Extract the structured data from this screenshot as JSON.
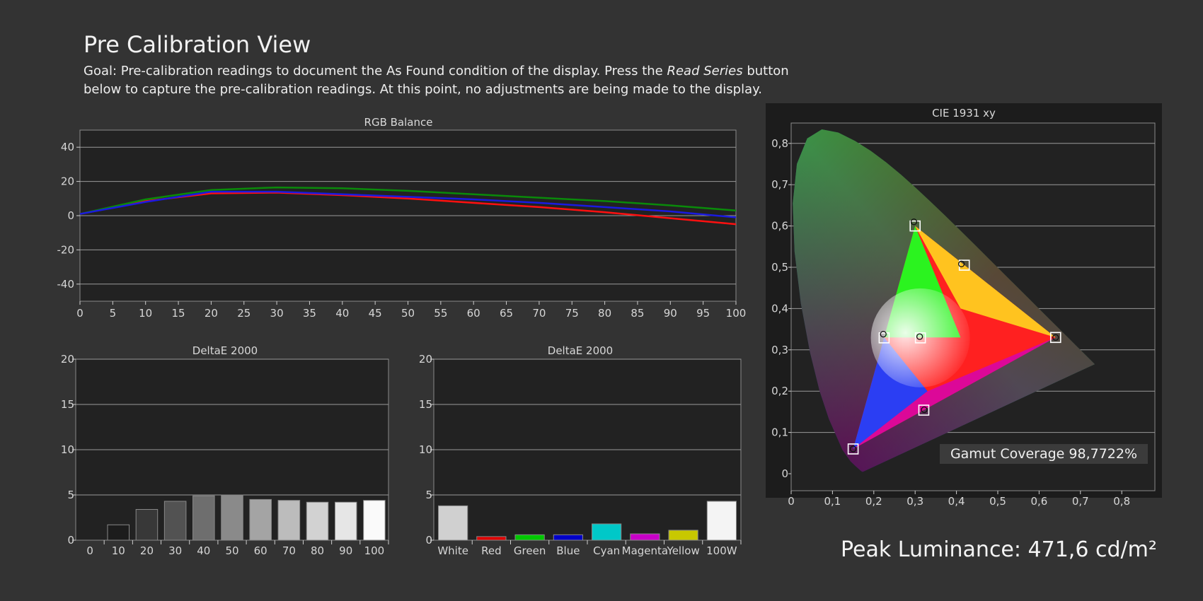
{
  "page": {
    "title": "Pre Calibration View",
    "desc_prefix": "Goal: Pre-calibration readings to document the As Found condition of the display. Press the ",
    "desc_emphasis": "Read Series",
    "desc_suffix": " button below to capture the pre-calibration readings. At this point, no adjustments are being made to the display."
  },
  "gamut_coverage": "Gamut Coverage 98,7722%",
  "peak_luminance": "Peak Luminance: 471,6 cd/m²",
  "colors": {
    "background": "#333333",
    "plot_bg": "#222222",
    "grid": "#9a9a9a",
    "red": "#ff1010",
    "green": "#0a8a0a",
    "blue": "#1a1ae0"
  },
  "chart_data": [
    {
      "type": "line",
      "title": "RGB Balance",
      "x": [
        0,
        10,
        20,
        30,
        40,
        50,
        60,
        70,
        80,
        90,
        100
      ],
      "x_ticks": [
        "0",
        "5",
        "10",
        "15",
        "20",
        "25",
        "30",
        "35",
        "40",
        "45",
        "50",
        "55",
        "60",
        "65",
        "70",
        "75",
        "80",
        "85",
        "90",
        "95",
        "100"
      ],
      "y_ticks": [
        "40",
        "20",
        "0",
        "-20",
        "-40"
      ],
      "xlim": [
        0,
        100
      ],
      "ylim": [
        -50,
        50
      ],
      "series": [
        {
          "color": "#ff1010",
          "values": [
            1,
            8.5,
            13,
            13.5,
            12,
            10,
            7.5,
            5,
            2,
            -1.5,
            -5
          ]
        },
        {
          "color": "#0a8a0a",
          "values": [
            1,
            9.5,
            15,
            16.5,
            16,
            14.5,
            12.5,
            10.5,
            8.5,
            6,
            3
          ]
        },
        {
          "color": "#1a1ae0",
          "values": [
            1,
            8,
            14,
            14,
            12.5,
            11,
            9.5,
            7.5,
            5,
            2.5,
            -1
          ]
        }
      ],
      "grid": true
    },
    {
      "type": "bar",
      "title": "DeltaE 2000",
      "categories": [
        "0",
        "10",
        "20",
        "30",
        "40",
        "50",
        "60",
        "70",
        "80",
        "90",
        "100"
      ],
      "values": [
        0,
        1.7,
        3.4,
        4.3,
        4.9,
        5.0,
        4.5,
        4.4,
        4.2,
        4.2,
        4.4
      ],
      "colors": [
        "#000000",
        "#1c1c1c",
        "#383838",
        "#525252",
        "#6e6e6e",
        "#8a8a8a",
        "#a4a4a4",
        "#bcbcbc",
        "#d2d2d2",
        "#e6e6e6",
        "#fafafa"
      ],
      "y_ticks": [
        "20",
        "15",
        "10",
        "5",
        "0"
      ],
      "ylim": [
        0,
        20
      ],
      "grid": true
    },
    {
      "type": "bar",
      "title": "DeltaE 2000",
      "categories": [
        "White",
        "Red",
        "Green",
        "Blue",
        "Cyan",
        "Magenta",
        "Yellow",
        "100W"
      ],
      "values": [
        3.8,
        0.4,
        0.6,
        0.6,
        1.8,
        0.7,
        1.1,
        4.3
      ],
      "colors": [
        "#d0d0d0",
        "#e00000",
        "#00c800",
        "#0000c8",
        "#00c8c8",
        "#c800c8",
        "#c8c800",
        "#f4f4f4"
      ],
      "y_ticks": [
        "20",
        "15",
        "10",
        "5",
        "0"
      ],
      "ylim": [
        0,
        20
      ],
      "grid": true
    },
    {
      "type": "scatter",
      "title": "CIE 1931 xy",
      "x_ticks": [
        "0",
        "0,1",
        "0,2",
        "0,3",
        "0,4",
        "0,5",
        "0,6",
        "0,7",
        "0,8"
      ],
      "y_ticks": [
        "0,8",
        "0,7",
        "0,6",
        "0,5",
        "0,4",
        "0,3",
        "0,2",
        "0,1",
        "0"
      ],
      "xlim": [
        0,
        0.84
      ],
      "ylim": [
        0,
        0.84
      ],
      "targets": [
        {
          "name": "R",
          "x": 0.64,
          "y": 0.33
        },
        {
          "name": "G",
          "x": 0.3,
          "y": 0.6
        },
        {
          "name": "B",
          "x": 0.15,
          "y": 0.06
        },
        {
          "name": "C",
          "x": 0.225,
          "y": 0.329
        },
        {
          "name": "M",
          "x": 0.321,
          "y": 0.154
        },
        {
          "name": "Y",
          "x": 0.419,
          "y": 0.505
        },
        {
          "name": "W",
          "x": 0.3127,
          "y": 0.329
        }
      ],
      "measured": [
        {
          "name": "R",
          "x": 0.64,
          "y": 0.33
        },
        {
          "name": "G",
          "x": 0.297,
          "y": 0.61
        },
        {
          "name": "B",
          "x": 0.15,
          "y": 0.06
        },
        {
          "name": "C",
          "x": 0.223,
          "y": 0.338
        },
        {
          "name": "M",
          "x": 0.322,
          "y": 0.155
        },
        {
          "name": "Y",
          "x": 0.412,
          "y": 0.508
        },
        {
          "name": "W",
          "x": 0.311,
          "y": 0.332
        }
      ]
    }
  ]
}
